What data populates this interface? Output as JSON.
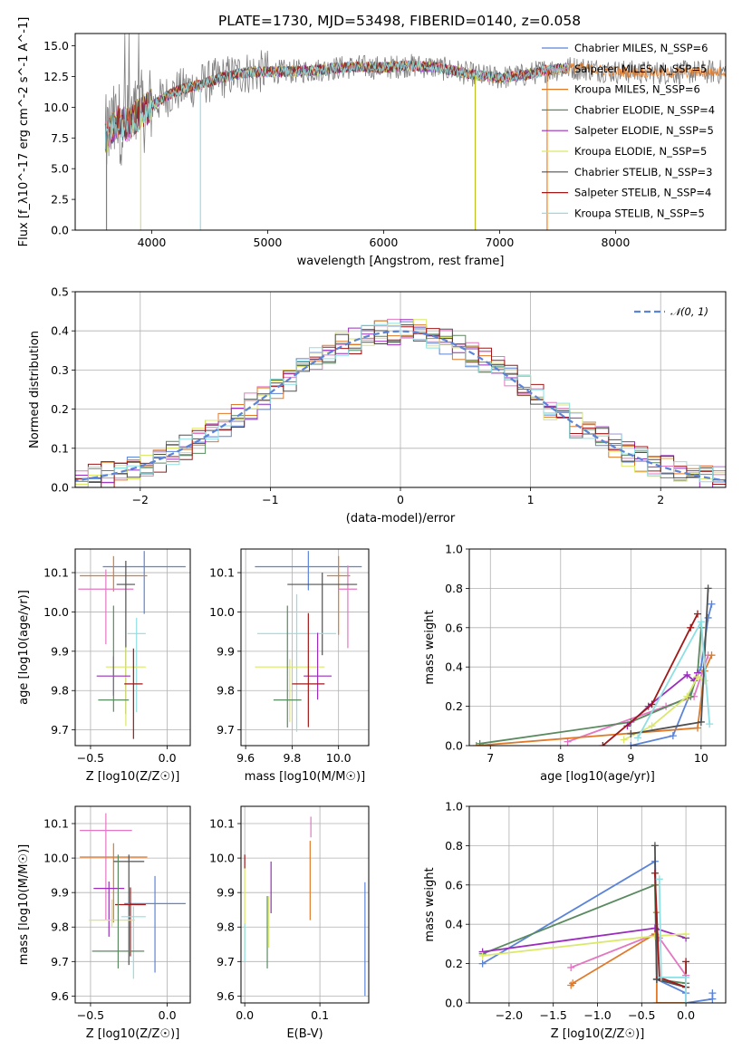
{
  "figure": {
    "title": "PLATE=1730, MJD=53498, FIBERID=0140, z=0.058"
  },
  "chart_data": [
    {
      "id": "spectrum",
      "type": "line",
      "title": "PLATE=1730, MJD=53498, FIBERID=0140, z=0.058",
      "xlabel": "wavelength [Angstrom, rest frame]",
      "ylabel": "Flux [f_λ10^-17 erg cm^-2 s^-1 A^-1]",
      "xlim": [
        3340,
        8950
      ],
      "ylim": [
        0,
        16
      ],
      "xticks": [
        4000,
        5000,
        6000,
        7000,
        8000
      ],
      "yticks": [
        0.0,
        2.5,
        5.0,
        7.5,
        10.0,
        12.5,
        15.0
      ],
      "grid": false,
      "legend_position": "upper right",
      "data_range": [
        3600,
        8950
      ],
      "continuum": [
        [
          3600,
          7.5
        ],
        [
          3700,
          8.8
        ],
        [
          3800,
          8.6
        ],
        [
          3900,
          9.5
        ],
        [
          4000,
          10.2
        ],
        [
          4200,
          11.3
        ],
        [
          4400,
          11.8
        ],
        [
          4600,
          12.4
        ],
        [
          4800,
          12.8
        ],
        [
          5000,
          12.9
        ],
        [
          5200,
          12.9
        ],
        [
          5400,
          13.0
        ],
        [
          5600,
          13.2
        ],
        [
          5800,
          13.3
        ],
        [
          6000,
          13.2
        ],
        [
          6200,
          13.4
        ],
        [
          6400,
          13.3
        ],
        [
          6600,
          13.0
        ],
        [
          6800,
          12.6
        ],
        [
          7000,
          12.4
        ],
        [
          7200,
          12.6
        ],
        [
          7400,
          13.0
        ],
        [
          7600,
          13.2
        ],
        [
          7800,
          13.1
        ],
        [
          8000,
          12.9
        ],
        [
          8400,
          12.8
        ],
        [
          8950,
          12.9
        ]
      ],
      "spikes": [
        {
          "x": 3610,
          "color": "#7f7f7f"
        },
        {
          "x": 3905,
          "color": "#dbdb8d"
        },
        {
          "x": 4420,
          "color": "#9edae5"
        },
        {
          "x": 6790,
          "color": "#bcbd22"
        },
        {
          "x": 7410,
          "color": "#ff7f0e"
        }
      ],
      "series": [
        {
          "name": "Chabrier MILES, N_SSP=6",
          "color": "#5b84d8"
        },
        {
          "name": "Salpeter MILES, N_SSP=5",
          "color": "#e377c2"
        },
        {
          "name": "Kroupa MILES, N_SSP=6",
          "color": "#e07a28"
        },
        {
          "name": "Chabrier ELODIE, N_SSP=4",
          "color": "#5a8a5f"
        },
        {
          "name": "Salpeter ELODIE, N_SSP=5",
          "color": "#9b2dbc"
        },
        {
          "name": "Kroupa ELODIE, N_SSP=5",
          "color": "#dbe86a"
        },
        {
          "name": "Chabrier STELIB, N_SSP=3",
          "color": "#505050"
        },
        {
          "name": "Salpeter STELIB, N_SSP=4",
          "color": "#a01818"
        },
        {
          "name": "Kroupa STELIB, N_SSP=5",
          "color": "#8edfe3"
        }
      ]
    },
    {
      "id": "residuals",
      "type": "line",
      "xlabel": "(data-model)/error",
      "ylabel": "Normed distribution",
      "xlim": [
        -2.5,
        2.5
      ],
      "ylim": [
        0,
        0.5
      ],
      "xticks": [
        -2,
        -1,
        0,
        1,
        2
      ],
      "yticks": [
        0.0,
        0.1,
        0.2,
        0.3,
        0.4,
        0.5
      ],
      "grid": true,
      "legend_position": "upper right",
      "reference": {
        "name": "𝒩(0, 1)",
        "mean": 0,
        "sigma": 1,
        "color": "#5b84d8"
      },
      "bin_width": 0.1
    },
    {
      "id": "age-vs-Z",
      "type": "scatter",
      "xlabel": "Z [log10(Z/Z☉)]",
      "ylabel": "age  [log10(age/yr)]",
      "xlim": [
        -0.6,
        0.15
      ],
      "ylim": [
        9.66,
        10.16
      ],
      "xticks": [
        -0.5,
        0.0
      ],
      "yticks": [
        9.7,
        9.8,
        9.9,
        10.0,
        10.1
      ],
      "grid": true,
      "points": [
        {
          "x": -0.15,
          "y": 10.115,
          "xerr": 0.27,
          "yerr_lo": 0.12,
          "yerr_hi": 0.04,
          "color": "#5b84d8"
        },
        {
          "x": -0.35,
          "y": 10.092,
          "xerr": 0.22,
          "yerr_lo": 0.04,
          "yerr_hi": 0.05,
          "color": "#e07a28"
        },
        {
          "x": -0.4,
          "y": 10.058,
          "xerr": 0.18,
          "yerr_lo": 0.14,
          "yerr_hi": 0.05,
          "color": "#e377c2"
        },
        {
          "x": -0.27,
          "y": 10.07,
          "xerr": 0.06,
          "yerr_lo": 0.33,
          "yerr_hi": 0.06,
          "color": "#505050"
        },
        {
          "x": -0.2,
          "y": 9.945,
          "xerr": 0.06,
          "yerr_lo": 0.2,
          "yerr_hi": 0.04,
          "color": "#8edfe3"
        },
        {
          "x": -0.27,
          "y": 9.86,
          "xerr": 0.13,
          "yerr_lo": 0.15,
          "yerr_hi": 0.05,
          "color": "#dbe86a"
        },
        {
          "x": -0.35,
          "y": 9.837,
          "xerr": 0.11,
          "yerr_lo": 0.05,
          "yerr_hi": 0.05,
          "color": "#9b2dbc"
        },
        {
          "x": -0.22,
          "y": 9.817,
          "xerr": 0.06,
          "yerr_lo": 0.14,
          "yerr_hi": 0.09,
          "color": "#a01818"
        },
        {
          "x": -0.35,
          "y": 9.776,
          "xerr": 0.1,
          "yerr_lo": 0.03,
          "yerr_hi": 0.24,
          "color": "#5a8a5f"
        }
      ]
    },
    {
      "id": "age-vs-mass",
      "type": "scatter",
      "xlabel": "mass [log10(M/M☉)]",
      "ylabel": "",
      "xlim": [
        9.58,
        10.13
      ],
      "ylim": [
        9.66,
        10.16
      ],
      "xticks": [
        9.6,
        9.8,
        10.0
      ],
      "yticks": [
        9.7,
        9.8,
        9.9,
        10.0,
        10.1
      ],
      "grid": true,
      "points": [
        {
          "x": 9.87,
          "y": 10.115,
          "xerr": 0.23,
          "yerr_lo": 0.06,
          "yerr_hi": 0.04,
          "color": "#5b84d8"
        },
        {
          "x": 10.0,
          "y": 10.092,
          "xerr": 0.05,
          "yerr_lo": 0.15,
          "yerr_hi": 0.05,
          "color": "#e07a28"
        },
        {
          "x": 10.04,
          "y": 10.058,
          "xerr": 0.04,
          "yerr_lo": 0.15,
          "yerr_hi": 0.06,
          "color": "#e377c2"
        },
        {
          "x": 9.93,
          "y": 10.07,
          "xerr": 0.15,
          "yerr_lo": 0.18,
          "yerr_hi": 0.03,
          "color": "#505050"
        },
        {
          "x": 9.82,
          "y": 9.945,
          "xerr": 0.17,
          "yerr_lo": 0.25,
          "yerr_hi": 0.1,
          "color": "#8edfe3"
        },
        {
          "x": 9.79,
          "y": 9.86,
          "xerr": 0.15,
          "yerr_lo": 0.14,
          "yerr_hi": 0.02,
          "color": "#dbe86a"
        },
        {
          "x": 9.91,
          "y": 9.837,
          "xerr": 0.06,
          "yerr_lo": 0.06,
          "yerr_hi": 0.11,
          "color": "#9b2dbc"
        },
        {
          "x": 9.87,
          "y": 9.817,
          "xerr": 0.07,
          "yerr_lo": 0.11,
          "yerr_hi": 0.18,
          "color": "#a01818"
        },
        {
          "x": 9.78,
          "y": 9.776,
          "xerr": 0.06,
          "yerr_lo": 0.07,
          "yerr_hi": 0.24,
          "color": "#5a8a5f"
        }
      ]
    },
    {
      "id": "weight-vs-age",
      "type": "line",
      "xlabel": "age  [log10(age/yr)]",
      "ylabel": "mass weight",
      "xlim": [
        6.7,
        10.35
      ],
      "ylim": [
        0,
        1
      ],
      "xticks": [
        7,
        8,
        9,
        10
      ],
      "yticks": [
        0.0,
        0.2,
        0.4,
        0.6,
        0.8,
        1.0
      ],
      "grid": true,
      "series": [
        {
          "color": "#5b84d8",
          "points": [
            [
              9.0,
              0.0
            ],
            [
              9.6,
              0.05
            ],
            [
              10.0,
              0.4
            ],
            [
              10.1,
              0.65
            ],
            [
              10.15,
              0.72
            ]
          ]
        },
        {
          "color": "#e377c2",
          "points": [
            [
              8.1,
              0.02
            ],
            [
              9.5,
              0.2
            ],
            [
              9.9,
              0.25
            ],
            [
              10.1,
              0.46
            ]
          ]
        },
        {
          "color": "#e07a28",
          "points": [
            [
              6.8,
              0.0
            ],
            [
              9.95,
              0.09
            ],
            [
              10.05,
              0.38
            ],
            [
              10.15,
              0.46
            ]
          ]
        },
        {
          "color": "#5a8a5f",
          "points": [
            [
              6.85,
              0.01
            ],
            [
              9.0,
              0.12
            ],
            [
              9.85,
              0.25
            ],
            [
              9.95,
              0.37
            ],
            [
              10.0,
              0.6
            ]
          ]
        },
        {
          "color": "#9b2dbc",
          "points": [
            [
              8.95,
              0.1
            ],
            [
              9.25,
              0.2
            ],
            [
              9.8,
              0.36
            ],
            [
              9.9,
              0.33
            ],
            [
              9.95,
              0.37
            ]
          ]
        },
        {
          "color": "#dbe86a",
          "points": [
            [
              8.9,
              0.03
            ],
            [
              9.3,
              0.1
            ],
            [
              9.8,
              0.25
            ],
            [
              9.95,
              0.35
            ],
            [
              10.05,
              0.33
            ]
          ]
        },
        {
          "color": "#505050",
          "points": [
            [
              9.0,
              0.06
            ],
            [
              10.0,
              0.12
            ],
            [
              10.1,
              0.8
            ]
          ]
        },
        {
          "color": "#a01818",
          "points": [
            [
              8.6,
              0.0
            ],
            [
              9.3,
              0.21
            ],
            [
              9.85,
              0.6
            ],
            [
              9.95,
              0.67
            ]
          ]
        },
        {
          "color": "#8edfe3",
          "points": [
            [
              9.1,
              0.04
            ],
            [
              10.0,
              0.63
            ],
            [
              10.12,
              0.11
            ]
          ]
        }
      ]
    },
    {
      "id": "mass-vs-Z",
      "type": "scatter",
      "xlabel": "Z [log10(Z/Z☉)]",
      "ylabel": "mass [log10(M/M☉)]",
      "xlim": [
        -0.6,
        0.15
      ],
      "ylim": [
        9.58,
        10.15
      ],
      "xticks": [
        -0.5,
        0.0
      ],
      "yticks": [
        9.6,
        9.7,
        9.8,
        9.9,
        10.0,
        10.1
      ],
      "grid": true,
      "points": [
        {
          "x": -0.4,
          "y": 10.08,
          "xerr": 0.17,
          "yerr_lo": 0.26,
          "yerr_hi": 0.05,
          "color": "#e377c2"
        },
        {
          "x": -0.35,
          "y": 10.003,
          "xerr": 0.22,
          "yerr_lo": 0.19,
          "yerr_hi": 0.04,
          "color": "#e07a28"
        },
        {
          "x": -0.25,
          "y": 9.99,
          "xerr": 0.1,
          "yerr_lo": 0.3,
          "yerr_hi": 0.02,
          "color": "#505050"
        },
        {
          "x": -0.38,
          "y": 9.912,
          "xerr": 0.1,
          "yerr_lo": 0.14,
          "yerr_hi": 0.02,
          "color": "#9b2dbc"
        },
        {
          "x": -0.08,
          "y": 9.868,
          "xerr": 0.2,
          "yerr_lo": 0.2,
          "yerr_hi": 0.08,
          "color": "#5b84d8"
        },
        {
          "x": -0.24,
          "y": 9.865,
          "xerr": 0.1,
          "yerr_lo": 0.15,
          "yerr_hi": 0.05,
          "color": "#a01818"
        },
        {
          "x": -0.22,
          "y": 9.83,
          "xerr": 0.08,
          "yerr_lo": 0.18,
          "yerr_hi": 0.03,
          "color": "#8edfe3"
        },
        {
          "x": -0.36,
          "y": 9.82,
          "xerr": 0.15,
          "yerr_lo": 0.02,
          "yerr_hi": 0.06,
          "color": "#dbe86a"
        },
        {
          "x": -0.32,
          "y": 9.73,
          "xerr": 0.17,
          "yerr_lo": 0.05,
          "yerr_hi": 0.28,
          "color": "#5a8a5f"
        }
      ]
    },
    {
      "id": "mass-vs-ebv",
      "type": "scatter",
      "xlabel": "E(B-V)",
      "ylabel": "",
      "xlim": [
        -0.005,
        0.165
      ],
      "ylim": [
        9.58,
        10.15
      ],
      "xticks": [
        0.0,
        0.1
      ],
      "yticks": [
        9.6,
        9.7,
        9.8,
        9.9,
        10.0,
        10.1
      ],
      "grid": true,
      "points": [
        {
          "x": 0.0,
          "y": 9.99,
          "yerr_lo": 0.02,
          "yerr_hi": 0.02,
          "color": "#a01818"
        },
        {
          "x": 0.0,
          "y": 9.86,
          "yerr_lo": 0.13,
          "yerr_hi": 0.11,
          "color": "#dbe86a"
        },
        {
          "x": 0.0,
          "y": 9.75,
          "yerr_lo": 0.05,
          "yerr_hi": 0.06,
          "color": "#8edfe3"
        },
        {
          "x": 0.03,
          "y": 9.81,
          "yerr_lo": 0.13,
          "yerr_hi": 0.08,
          "color": "#5a8a5f"
        },
        {
          "x": 0.032,
          "y": 9.78,
          "yerr_lo": 0.04,
          "yerr_hi": 0.11,
          "color": "#dbe86a"
        },
        {
          "x": 0.035,
          "y": 9.9,
          "yerr_lo": 0.06,
          "yerr_hi": 0.09,
          "color": "#9b2dbc"
        },
        {
          "x": 0.087,
          "y": 9.92,
          "yerr_lo": 0.1,
          "yerr_hi": 0.13,
          "color": "#e07a28"
        },
        {
          "x": 0.088,
          "y": 10.08,
          "yerr_lo": 0.02,
          "yerr_hi": 0.04,
          "color": "#e377c2"
        },
        {
          "x": 0.16,
          "y": 9.76,
          "yerr_lo": 0.16,
          "yerr_hi": 0.17,
          "color": "#5b84d8"
        }
      ]
    },
    {
      "id": "weight-vs-Z",
      "type": "line",
      "xlabel": "Z [log10(Z/Z☉)]",
      "ylabel": "mass weight",
      "xlim": [
        -2.45,
        0.45
      ],
      "ylim": [
        0,
        1
      ],
      "xticks": [
        -2.0,
        -1.5,
        -1.0,
        -0.5,
        0.0
      ],
      "yticks": [
        0.0,
        0.2,
        0.4,
        0.6,
        0.8,
        1.0
      ],
      "grid": true,
      "series": [
        {
          "color": "#5b84d8",
          "points": [
            [
              -2.3,
              0.2
            ],
            [
              -0.35,
              0.72
            ],
            [
              -0.33,
              0.12
            ],
            [
              0.0,
              0.05
            ],
            [
              0.0,
              0.0
            ],
            [
              0.3,
              0.02
            ],
            [
              0.3,
              0.05
            ]
          ]
        },
        {
          "color": "#e377c2",
          "points": [
            [
              -1.3,
              0.18
            ],
            [
              -0.35,
              0.35
            ],
            [
              -0.3,
              0.33
            ],
            [
              0.0,
              0.14
            ]
          ]
        },
        {
          "color": "#e07a28",
          "points": [
            [
              -1.3,
              0.09
            ],
            [
              -1.28,
              0.1
            ],
            [
              -0.35,
              0.35
            ],
            [
              -0.33,
              0.46
            ],
            [
              -0.33,
              0.0
            ],
            [
              0.0,
              0.0
            ]
          ]
        },
        {
          "color": "#5a8a5f",
          "points": [
            [
              -2.3,
              0.25
            ],
            [
              -0.35,
              0.6
            ],
            [
              -0.33,
              0.12
            ],
            [
              0.0,
              0.1
            ]
          ]
        },
        {
          "color": "#9b2dbc",
          "points": [
            [
              -2.3,
              0.26
            ],
            [
              -0.35,
              0.38
            ],
            [
              0.0,
              0.33
            ]
          ]
        },
        {
          "color": "#dbe86a",
          "points": [
            [
              -2.3,
              0.24
            ],
            [
              -0.35,
              0.34
            ],
            [
              0.0,
              0.35
            ]
          ]
        },
        {
          "color": "#505050",
          "points": [
            [
              -0.35,
              0.8
            ],
            [
              -0.33,
              0.12
            ],
            [
              0.0,
              0.08
            ]
          ]
        },
        {
          "color": "#a01818",
          "points": [
            [
              -0.35,
              0.66
            ],
            [
              -0.3,
              0.13
            ],
            [
              0.0,
              0.08
            ],
            [
              0.0,
              0.21
            ]
          ]
        },
        {
          "color": "#8edfe3",
          "points": [
            [
              -0.3,
              0.63
            ],
            [
              -0.28,
              0.13
            ],
            [
              0.0,
              0.13
            ],
            [
              0.0,
              0.0
            ]
          ]
        }
      ]
    }
  ]
}
